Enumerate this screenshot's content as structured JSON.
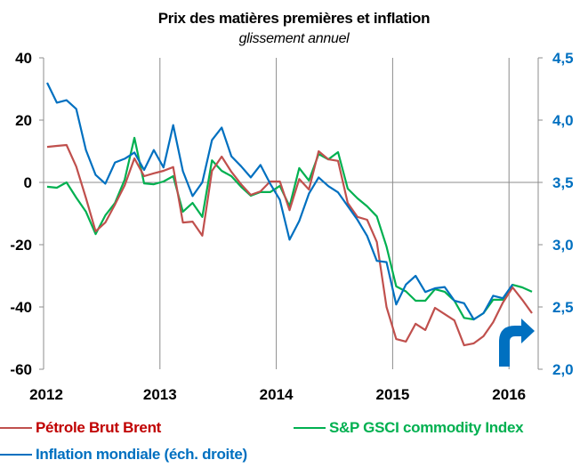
{
  "chart_data": {
    "type": "line",
    "title": "Prix des matières premières et inflation",
    "subtitle": "glissement annuel",
    "xlabel": "",
    "ylabel_left": "",
    "ylabel_right": "",
    "x_start": "2012-01",
    "x_frequency": "monthly",
    "x_ticks": [
      "2012",
      "2013",
      "2014",
      "2015",
      "2016"
    ],
    "ylim_left": [
      -60,
      40
    ],
    "y_ticks_left": [
      "40",
      "20",
      "0",
      "-20",
      "-40",
      "-60"
    ],
    "y_tick_values_left": [
      40,
      20,
      0,
      -20,
      -40,
      -60
    ],
    "ylim_right": [
      2.0,
      4.5
    ],
    "y_ticks_right": [
      "4,5",
      "4,0",
      "3,5",
      "3,0",
      "2,5",
      "2,0"
    ],
    "y_tick_values_right": [
      4.5,
      4.0,
      3.5,
      3.0,
      2.5,
      2.0
    ],
    "grid": "vertical year lines",
    "legend_position": "bottom",
    "series": [
      {
        "name": "Pétrole Brut Brent",
        "axis": "left",
        "color": "#C0504D",
        "label_color": "#C00000",
        "values": [
          11.4,
          11.7,
          12,
          5.1,
          -5,
          -15.7,
          -12.9,
          -7.1,
          -0.9,
          7.7,
          2,
          2.9,
          3.7,
          4.9,
          -12.9,
          -12.6,
          -17.1,
          3.7,
          8.3,
          3.4,
          -0.6,
          -4,
          -2.9,
          0.3,
          0.3,
          -8.9,
          1.1,
          -2.3,
          10,
          7.4,
          6.9,
          -6.6,
          -11.1,
          -12,
          -19.1,
          -40,
          -50.3,
          -51.1,
          -45.4,
          -47.4,
          -40.3,
          -42.3,
          -44.3,
          -52.3,
          -51.7,
          -49.4,
          -44.9,
          -38.6,
          -33.7,
          -37.7,
          -42
        ]
      },
      {
        "name": "S&P GSCI commodity Index",
        "axis": "left",
        "color": "#00B050",
        "label_color": "#00B050",
        "values": [
          -1.4,
          -1.7,
          0,
          -4.9,
          -9.4,
          -16.6,
          -10.6,
          -6.6,
          0.9,
          14.3,
          -0.3,
          -0.6,
          0.3,
          2,
          -9.4,
          -6.6,
          -11.1,
          7.1,
          3.7,
          2,
          -1.4,
          -4.3,
          -3.1,
          -3.1,
          -1.1,
          -7.7,
          4.6,
          0.6,
          9.1,
          7.4,
          9.7,
          -2,
          -5.1,
          -7.7,
          -10.9,
          -20.6,
          -33.4,
          -35,
          -38,
          -38,
          -34.3,
          -35.1,
          -38,
          -43.5,
          -44,
          -42,
          -37.7,
          -37.7,
          -32.9,
          -33.7,
          -35.1
        ]
      },
      {
        "name": "Inflation mondiale (éch. droite)",
        "axis": "right",
        "color": "#0070C0",
        "label_color": "#0070C0",
        "values": [
          4.3,
          4.14,
          4.16,
          4.09,
          3.76,
          3.56,
          3.49,
          3.66,
          3.69,
          3.74,
          3.6,
          3.76,
          3.62,
          3.96,
          3.59,
          3.39,
          3.5,
          3.84,
          3.94,
          3.71,
          3.63,
          3.54,
          3.64,
          3.49,
          3.36,
          3.04,
          3.19,
          3.41,
          3.54,
          3.47,
          3.42,
          3.31,
          3.2,
          3.07,
          2.87,
          2.86,
          2.52,
          2.68,
          2.75,
          2.62,
          2.65,
          2.66,
          2.55,
          2.53,
          2.4,
          2.45,
          2.59,
          2.57,
          2.68
        ]
      }
    ],
    "annotations": [
      {
        "type": "arrow",
        "icon": "curved-arrow-right-icon",
        "color": "#0070C0"
      }
    ]
  }
}
